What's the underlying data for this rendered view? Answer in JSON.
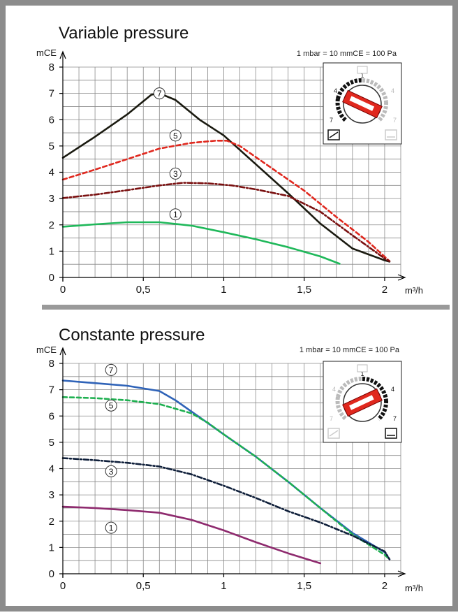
{
  "chart_data": [
    {
      "type": "line",
      "title": "Variable pressure",
      "ylabel": "mCE",
      "xlabel": "m³/h",
      "note": "1 mbar = 10 mmCE = 100 Pa",
      "xlim": [
        0,
        2.1
      ],
      "ylim": [
        0,
        8
      ],
      "grid": true,
      "x_ticks": [
        "0",
        "0,5",
        "1",
        "1,5",
        "2"
      ],
      "x_tick_values": [
        0,
        0.5,
        1,
        1.5,
        2
      ],
      "y_ticks": [
        "0",
        "1",
        "2",
        "3",
        "4",
        "5",
        "6",
        "7",
        "8"
      ],
      "series": [
        {
          "name": "7",
          "color": "#1a1a10",
          "dash": "solid",
          "label_at": [
            0.6,
            7.0
          ],
          "x": [
            0,
            0.2,
            0.4,
            0.55,
            0.6,
            0.7,
            0.85,
            1.0,
            1.2,
            1.4,
            1.6,
            1.8,
            2.0,
            2.03
          ],
          "y": [
            4.55,
            5.35,
            6.2,
            6.95,
            7.0,
            6.75,
            6.0,
            5.4,
            4.3,
            3.2,
            2.05,
            1.1,
            0.65,
            0.6
          ]
        },
        {
          "name": "5",
          "color": "#e0281e",
          "dash": "6,4",
          "label_at": [
            0.7,
            5.4
          ],
          "x": [
            0,
            0.2,
            0.4,
            0.6,
            0.8,
            0.95,
            1.02,
            1.1,
            1.3,
            1.5,
            1.7,
            1.9,
            2.03
          ],
          "y": [
            3.72,
            4.1,
            4.5,
            4.9,
            5.12,
            5.2,
            5.2,
            5.0,
            4.15,
            3.3,
            2.3,
            1.35,
            0.62
          ]
        },
        {
          "name": "3",
          "color": "#7a1010",
          "dash": "7,3,2,3",
          "label_at": [
            0.7,
            3.95
          ],
          "x": [
            0,
            0.2,
            0.4,
            0.6,
            0.75,
            0.9,
            1.05,
            1.2,
            1.4,
            1.6,
            1.8,
            2.0,
            2.03
          ],
          "y": [
            3.02,
            3.15,
            3.32,
            3.5,
            3.6,
            3.58,
            3.5,
            3.35,
            3.1,
            2.5,
            1.6,
            0.72,
            0.62
          ]
        },
        {
          "name": "1",
          "color": "#1fb85a",
          "dash": "solid",
          "label_at": [
            0.7,
            2.4
          ],
          "x": [
            0,
            0.2,
            0.4,
            0.6,
            0.8,
            1.0,
            1.2,
            1.4,
            1.6,
            1.72
          ],
          "y": [
            1.93,
            2.02,
            2.1,
            2.1,
            1.97,
            1.72,
            1.45,
            1.15,
            0.8,
            0.52
          ]
        }
      ]
    },
    {
      "type": "line",
      "title": "Constante pressure",
      "ylabel": "mCE",
      "xlabel": "m³/h",
      "note": "1 mbar = 10 mmCE = 100 Pa",
      "xlim": [
        0,
        2.1
      ],
      "ylim": [
        0,
        8
      ],
      "grid": true,
      "x_ticks": [
        "0",
        "0,5",
        "1",
        "1,5",
        "2"
      ],
      "x_tick_values": [
        0,
        0.5,
        1,
        1.5,
        2
      ],
      "y_ticks": [
        "0",
        "1",
        "2",
        "3",
        "4",
        "5",
        "6",
        "7",
        "8"
      ],
      "series": [
        {
          "name": "7",
          "color": "#2f63b8",
          "dash": "solid",
          "label_at": [
            0.3,
            7.75
          ],
          "x": [
            0,
            0.2,
            0.4,
            0.6,
            0.7,
            0.85,
            1.0,
            1.2,
            1.4,
            1.6,
            1.8,
            2.0,
            2.03
          ],
          "y": [
            7.35,
            7.25,
            7.15,
            6.95,
            6.6,
            5.95,
            5.3,
            4.45,
            3.5,
            2.5,
            1.55,
            0.82,
            0.55
          ]
        },
        {
          "name": "5",
          "color": "#1eb050",
          "dash": "6,4",
          "label_at": [
            0.3,
            6.4
          ],
          "x": [
            0,
            0.2,
            0.4,
            0.6,
            0.8,
            0.9,
            1.0,
            1.2,
            1.4,
            1.6,
            1.8,
            2.0,
            2.03
          ],
          "y": [
            6.72,
            6.68,
            6.6,
            6.45,
            6.1,
            5.75,
            5.3,
            4.45,
            3.5,
            2.5,
            1.5,
            0.72,
            0.55
          ]
        },
        {
          "name": "3",
          "color": "#0f1f3a",
          "dash": "7,3,2,3",
          "label_at": [
            0.3,
            3.9
          ],
          "x": [
            0,
            0.2,
            0.4,
            0.6,
            0.8,
            1.0,
            1.2,
            1.4,
            1.6,
            1.8,
            2.0,
            2.03
          ],
          "y": [
            4.4,
            4.32,
            4.22,
            4.08,
            3.78,
            3.35,
            2.88,
            2.38,
            1.95,
            1.45,
            0.85,
            0.55
          ]
        },
        {
          "name": "1",
          "color": "#8e2a6e",
          "dash": "solid",
          "label_at": [
            0.3,
            1.75
          ],
          "x": [
            0,
            0.2,
            0.4,
            0.6,
            0.8,
            1.0,
            1.2,
            1.4,
            1.6
          ],
          "y": [
            2.55,
            2.5,
            2.42,
            2.32,
            2.05,
            1.65,
            1.2,
            0.78,
            0.4
          ]
        }
      ]
    }
  ]
}
